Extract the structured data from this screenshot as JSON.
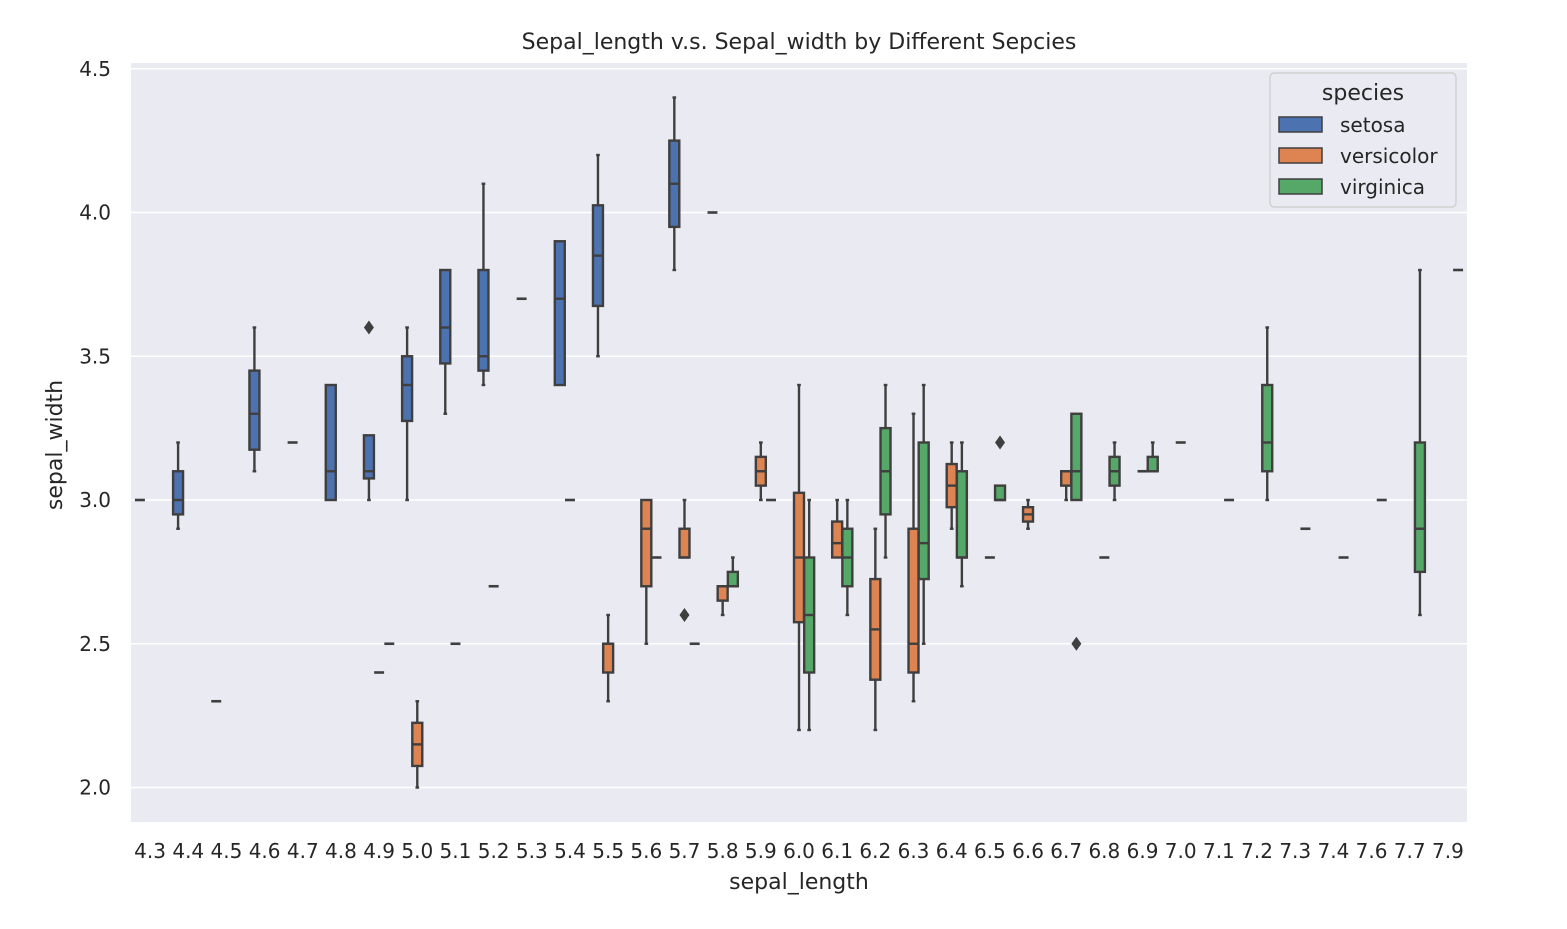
{
  "chart_data": {
    "type": "box",
    "title": "Sepal_length v.s. Sepal_width by Different Sepcies",
    "xlabel": "sepal_length",
    "ylabel": "sepal_width",
    "ylim": [
      1.88,
      4.52
    ],
    "yticks": [
      "2.0",
      "2.5",
      "3.0",
      "3.5",
      "4.0",
      "4.5"
    ],
    "categories": [
      "4.3",
      "4.4",
      "4.5",
      "4.6",
      "4.7",
      "4.8",
      "4.9",
      "5.0",
      "5.1",
      "5.2",
      "5.3",
      "5.4",
      "5.5",
      "5.6",
      "5.7",
      "5.8",
      "5.9",
      "6.0",
      "6.1",
      "6.2",
      "6.3",
      "6.4",
      "6.5",
      "6.6",
      "6.7",
      "6.8",
      "6.9",
      "7.0",
      "7.1",
      "7.2",
      "7.3",
      "7.4",
      "7.6",
      "7.7",
      "7.9"
    ],
    "grid": true,
    "legend": {
      "title": "species",
      "placement": "top-right",
      "entries": [
        {
          "name": "setosa",
          "color": "#4c72b0"
        },
        {
          "name": "versicolor",
          "color": "#dd8452"
        },
        {
          "name": "virginica",
          "color": "#55a868"
        }
      ]
    },
    "series": [
      {
        "name": "setosa",
        "color": "#4c72b0",
        "boxes": [
          {
            "x": "4.3",
            "q1": 3.0,
            "med": 3.0,
            "q3": 3.0,
            "min": 3.0,
            "max": 3.0,
            "outliers": []
          },
          {
            "x": "4.4",
            "q1": 2.95,
            "med": 3.0,
            "q3": 3.1,
            "min": 2.9,
            "max": 3.2,
            "outliers": []
          },
          {
            "x": "4.5",
            "q1": 2.3,
            "med": 2.3,
            "q3": 2.3,
            "min": 2.3,
            "max": 2.3,
            "outliers": []
          },
          {
            "x": "4.6",
            "q1": 3.175,
            "med": 3.3,
            "q3": 3.45,
            "min": 3.1,
            "max": 3.6,
            "outliers": []
          },
          {
            "x": "4.7",
            "q1": 3.2,
            "med": 3.2,
            "q3": 3.2,
            "min": 3.2,
            "max": 3.2,
            "outliers": []
          },
          {
            "x": "4.8",
            "q1": 3.0,
            "med": 3.1,
            "q3": 3.4,
            "min": 3.0,
            "max": 3.4,
            "outliers": []
          },
          {
            "x": "4.9",
            "q1": 3.075,
            "med": 3.1,
            "q3": 3.225,
            "min": 3.0,
            "max": 3.225,
            "outliers": [
              3.6
            ]
          },
          {
            "x": "5.0",
            "q1": 3.275,
            "med": 3.4,
            "q3": 3.5,
            "min": 3.0,
            "max": 3.6,
            "outliers": []
          },
          {
            "x": "5.1",
            "q1": 3.475,
            "med": 3.6,
            "q3": 3.8,
            "min": 3.3,
            "max": 3.8,
            "outliers": []
          },
          {
            "x": "5.2",
            "q1": 3.45,
            "med": 3.5,
            "q3": 3.8,
            "min": 3.4,
            "max": 4.1,
            "outliers": []
          },
          {
            "x": "5.3",
            "q1": 3.7,
            "med": 3.7,
            "q3": 3.7,
            "min": 3.7,
            "max": 3.7,
            "outliers": []
          },
          {
            "x": "5.4",
            "q1": 3.4,
            "med": 3.7,
            "q3": 3.9,
            "min": 3.4,
            "max": 3.9,
            "outliers": []
          },
          {
            "x": "5.5",
            "q1": 3.675,
            "med": 3.85,
            "q3": 4.025,
            "min": 3.5,
            "max": 4.2,
            "outliers": []
          },
          {
            "x": "5.7",
            "q1": 3.95,
            "med": 4.1,
            "q3": 4.25,
            "min": 3.8,
            "max": 4.4,
            "outliers": []
          },
          {
            "x": "5.8",
            "q1": 4.0,
            "med": 4.0,
            "q3": 4.0,
            "min": 4.0,
            "max": 4.0,
            "outliers": []
          }
        ]
      },
      {
        "name": "versicolor",
        "color": "#dd8452",
        "boxes": [
          {
            "x": "4.9",
            "q1": 2.4,
            "med": 2.4,
            "q3": 2.4,
            "min": 2.4,
            "max": 2.4,
            "outliers": []
          },
          {
            "x": "5.0",
            "q1": 2.075,
            "med": 2.15,
            "q3": 2.225,
            "min": 2.0,
            "max": 2.3,
            "outliers": []
          },
          {
            "x": "5.1",
            "q1": 2.5,
            "med": 2.5,
            "q3": 2.5,
            "min": 2.5,
            "max": 2.5,
            "outliers": []
          },
          {
            "x": "5.2",
            "q1": 2.7,
            "med": 2.7,
            "q3": 2.7,
            "min": 2.7,
            "max": 2.7,
            "outliers": []
          },
          {
            "x": "5.4",
            "q1": 3.0,
            "med": 3.0,
            "q3": 3.0,
            "min": 3.0,
            "max": 3.0,
            "outliers": []
          },
          {
            "x": "5.5",
            "q1": 2.4,
            "med": 2.5,
            "q3": 2.5,
            "min": 2.3,
            "max": 2.6,
            "outliers": []
          },
          {
            "x": "5.6",
            "q1": 2.7,
            "med": 2.9,
            "q3": 3.0,
            "min": 2.5,
            "max": 3.0,
            "outliers": []
          },
          {
            "x": "5.7",
            "q1": 2.8,
            "med": 2.8,
            "q3": 2.9,
            "min": 2.8,
            "max": 3.0,
            "outliers": [
              2.6
            ]
          },
          {
            "x": "5.8",
            "q1": 2.65,
            "med": 2.7,
            "q3": 2.7,
            "min": 2.6,
            "max": 2.7,
            "outliers": []
          },
          {
            "x": "5.9",
            "q1": 3.05,
            "med": 3.1,
            "q3": 3.15,
            "min": 3.0,
            "max": 3.2,
            "outliers": []
          },
          {
            "x": "6.0",
            "q1": 2.575,
            "med": 2.8,
            "q3": 3.025,
            "min": 2.2,
            "max": 3.4,
            "outliers": []
          },
          {
            "x": "6.1",
            "q1": 2.8,
            "med": 2.85,
            "q3": 2.925,
            "min": 2.8,
            "max": 3.0,
            "outliers": []
          },
          {
            "x": "6.2",
            "q1": 2.375,
            "med": 2.55,
            "q3": 2.725,
            "min": 2.2,
            "max": 2.9,
            "outliers": []
          },
          {
            "x": "6.3",
            "q1": 2.4,
            "med": 2.5,
            "q3": 2.9,
            "min": 2.3,
            "max": 3.3,
            "outliers": []
          },
          {
            "x": "6.4",
            "q1": 2.975,
            "med": 3.05,
            "q3": 3.125,
            "min": 2.9,
            "max": 3.2,
            "outliers": []
          },
          {
            "x": "6.5",
            "q1": 2.8,
            "med": 2.8,
            "q3": 2.8,
            "min": 2.8,
            "max": 2.8,
            "outliers": []
          },
          {
            "x": "6.6",
            "q1": 2.925,
            "med": 2.95,
            "q3": 2.975,
            "min": 2.9,
            "max": 3.0,
            "outliers": []
          },
          {
            "x": "6.7",
            "q1": 3.05,
            "med": 3.1,
            "q3": 3.1,
            "min": 3.0,
            "max": 3.1,
            "outliers": []
          },
          {
            "x": "6.8",
            "q1": 2.8,
            "med": 2.8,
            "q3": 2.8,
            "min": 2.8,
            "max": 2.8,
            "outliers": []
          },
          {
            "x": "6.9",
            "q1": 3.1,
            "med": 3.1,
            "q3": 3.1,
            "min": 3.1,
            "max": 3.1,
            "outliers": []
          },
          {
            "x": "7.0",
            "q1": 3.2,
            "med": 3.2,
            "q3": 3.2,
            "min": 3.2,
            "max": 3.2,
            "outliers": []
          }
        ]
      },
      {
        "name": "virginica",
        "color": "#55a868",
        "boxes": [
          {
            "x": "4.9",
            "q1": 2.5,
            "med": 2.5,
            "q3": 2.5,
            "min": 2.5,
            "max": 2.5,
            "outliers": []
          },
          {
            "x": "5.6",
            "q1": 2.8,
            "med": 2.8,
            "q3": 2.8,
            "min": 2.8,
            "max": 2.8,
            "outliers": []
          },
          {
            "x": "5.7",
            "q1": 2.5,
            "med": 2.5,
            "q3": 2.5,
            "min": 2.5,
            "max": 2.5,
            "outliers": []
          },
          {
            "x": "5.8",
            "q1": 2.7,
            "med": 2.7,
            "q3": 2.75,
            "min": 2.7,
            "max": 2.8,
            "outliers": []
          },
          {
            "x": "5.9",
            "q1": 3.0,
            "med": 3.0,
            "q3": 3.0,
            "min": 3.0,
            "max": 3.0,
            "outliers": []
          },
          {
            "x": "6.0",
            "q1": 2.4,
            "med": 2.6,
            "q3": 2.8,
            "min": 2.2,
            "max": 3.0,
            "outliers": []
          },
          {
            "x": "6.1",
            "q1": 2.7,
            "med": 2.8,
            "q3": 2.9,
            "min": 2.6,
            "max": 3.0,
            "outliers": []
          },
          {
            "x": "6.2",
            "q1": 2.95,
            "med": 3.1,
            "q3": 3.25,
            "min": 2.8,
            "max": 3.4,
            "outliers": []
          },
          {
            "x": "6.3",
            "q1": 2.725,
            "med": 2.85,
            "q3": 3.2,
            "min": 2.5,
            "max": 3.4,
            "outliers": []
          },
          {
            "x": "6.4",
            "q1": 2.8,
            "med": 2.8,
            "q3": 3.1,
            "min": 2.7,
            "max": 3.2,
            "outliers": []
          },
          {
            "x": "6.5",
            "q1": 3.0,
            "med": 3.0,
            "q3": 3.05,
            "min": 3.0,
            "max": 3.05,
            "outliers": [
              3.2
            ]
          },
          {
            "x": "6.7",
            "q1": 3.0,
            "med": 3.1,
            "q3": 3.3,
            "min": 3.0,
            "max": 3.3,
            "outliers": [
              2.5
            ]
          },
          {
            "x": "6.8",
            "q1": 3.05,
            "med": 3.1,
            "q3": 3.15,
            "min": 3.0,
            "max": 3.2,
            "outliers": []
          },
          {
            "x": "6.9",
            "q1": 3.1,
            "med": 3.1,
            "q3": 3.15,
            "min": 3.1,
            "max": 3.2,
            "outliers": []
          },
          {
            "x": "7.1",
            "q1": 3.0,
            "med": 3.0,
            "q3": 3.0,
            "min": 3.0,
            "max": 3.0,
            "outliers": []
          },
          {
            "x": "7.2",
            "q1": 3.1,
            "med": 3.2,
            "q3": 3.4,
            "min": 3.0,
            "max": 3.6,
            "outliers": []
          },
          {
            "x": "7.3",
            "q1": 2.9,
            "med": 2.9,
            "q3": 2.9,
            "min": 2.9,
            "max": 2.9,
            "outliers": []
          },
          {
            "x": "7.4",
            "q1": 2.8,
            "med": 2.8,
            "q3": 2.8,
            "min": 2.8,
            "max": 2.8,
            "outliers": []
          },
          {
            "x": "7.6",
            "q1": 3.0,
            "med": 3.0,
            "q3": 3.0,
            "min": 3.0,
            "max": 3.0,
            "outliers": []
          },
          {
            "x": "7.7",
            "q1": 2.75,
            "med": 2.9,
            "q3": 3.2,
            "min": 2.6,
            "max": 3.8,
            "outliers": []
          },
          {
            "x": "7.9",
            "q1": 3.8,
            "med": 3.8,
            "q3": 3.8,
            "min": 3.8,
            "max": 3.8,
            "outliers": []
          }
        ]
      }
    ]
  }
}
